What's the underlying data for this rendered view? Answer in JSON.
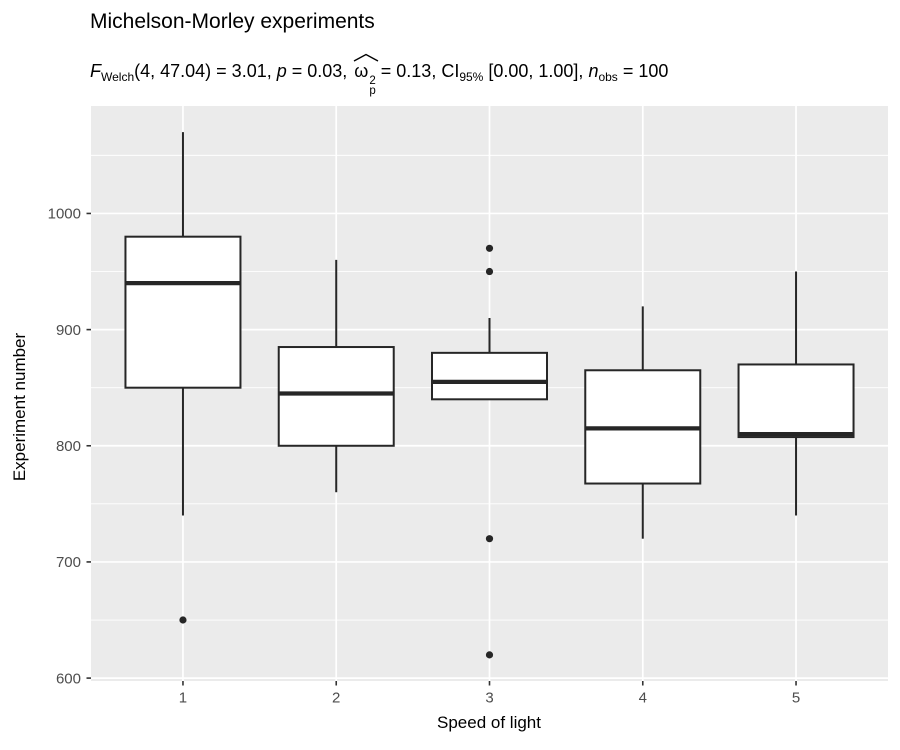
{
  "colors": {
    "background": "#FFFFFF",
    "panel_background": "#EBEBEB",
    "gridline": "#FFFFFF",
    "box_stroke": "#262626",
    "box_fill": "#FFFFFF",
    "outlier_fill": "#262626",
    "tick_mark": "#333333",
    "tick_label": "#4D4D4D",
    "text": "#000000"
  },
  "chart_data": {
    "type": "boxplot",
    "title": "Michelson-Morley experiments",
    "subtitle": {
      "text": "F_Welch(4, 47.04) = 3.01, p = 0.03, ω̂²_p = 0.13, CI_95% [0.00, 1.00], n_obs = 100",
      "segments": [
        {
          "t": "F",
          "style": "italic"
        },
        {
          "t": "Welch",
          "style": "sub"
        },
        {
          "t": "(4, 47.04) = 3.01, ",
          "style": "normal"
        },
        {
          "t": "p",
          "style": "italic"
        },
        {
          "t": " = 0.03, ",
          "style": "normal"
        },
        {
          "t": "ω",
          "style": "omega_hat",
          "sup": "2",
          "sub": "p"
        },
        {
          "t": " = 0.13, CI",
          "style": "normal"
        },
        {
          "t": "95%",
          "style": "sub"
        },
        {
          "t": " [0.00, 1.00], ",
          "style": "normal"
        },
        {
          "t": "n",
          "style": "italic"
        },
        {
          "t": "obs",
          "style": "sub"
        },
        {
          "t": " = 100",
          "style": "normal"
        }
      ]
    },
    "xlabel": "Speed of light",
    "ylabel": "Experiment number",
    "categories": [
      "1",
      "2",
      "3",
      "4",
      "5"
    ],
    "y_ticks": [
      600,
      700,
      800,
      900,
      1000
    ],
    "y_minor_gridlines": [
      650,
      750,
      850,
      950,
      1050
    ],
    "ylim": [
      597.5,
      1092.5
    ],
    "grid": true,
    "legend": "none",
    "series": [
      {
        "name": "Experiment 1",
        "whisker_low": 740,
        "q1": 850,
        "median": 940,
        "q3": 980,
        "whisker_high": 1070,
        "outliers": [
          650
        ]
      },
      {
        "name": "Experiment 2",
        "whisker_low": 760,
        "q1": 800,
        "median": 845,
        "q3": 885,
        "whisker_high": 960,
        "outliers": []
      },
      {
        "name": "Experiment 3",
        "whisker_low": 840,
        "q1": 840,
        "median": 855,
        "q3": 880,
        "whisker_high": 910,
        "outliers": [
          620,
          720,
          950,
          970
        ]
      },
      {
        "name": "Experiment 4",
        "whisker_low": 720,
        "q1": 767.5,
        "median": 815,
        "q3": 865,
        "whisker_high": 920,
        "outliers": []
      },
      {
        "name": "Experiment 5",
        "whisker_low": 740,
        "q1": 807.5,
        "median": 810,
        "q3": 870,
        "whisker_high": 950,
        "outliers": []
      }
    ]
  }
}
